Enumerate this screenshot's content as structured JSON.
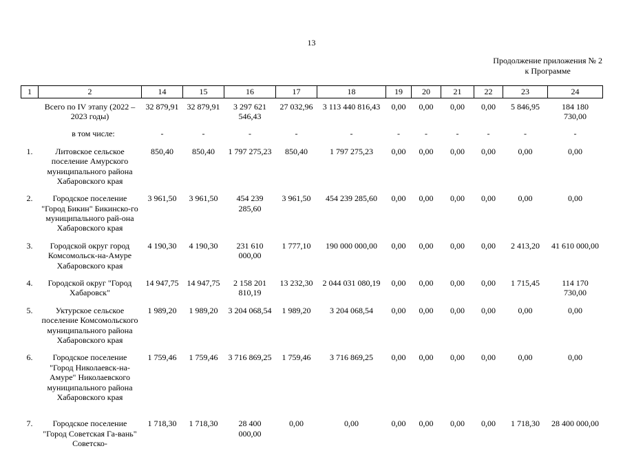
{
  "page": {
    "number": "13",
    "continuation_line1": "Продолжение приложения № 2",
    "continuation_line2": "к Программе"
  },
  "table": {
    "columns": [
      "1",
      "2",
      "14",
      "15",
      "16",
      "17",
      "18",
      "19",
      "20",
      "21",
      "22",
      "23",
      "24"
    ],
    "rows": [
      {
        "num": "",
        "name": "Всего по IV этапу (2022 – 2023 годы)",
        "indent": false,
        "values": [
          "32 879,91",
          "32 879,91",
          "3 297 621 546,43",
          "27 032,96",
          "3 113 440 816,43",
          "0,00",
          "0,00",
          "0,00",
          "0,00",
          "5 846,95",
          "184 180 730,00"
        ]
      },
      {
        "num": "",
        "name": "в том числе:",
        "indent": true,
        "values": [
          "-",
          "-",
          "-",
          "-",
          "-",
          "-",
          "-",
          "-",
          "-",
          "-",
          "-"
        ]
      },
      {
        "num": "1.",
        "name": "Литовское сельское поселение Амурского муниципального района Хабаровского края",
        "indent": false,
        "values": [
          "850,40",
          "850,40",
          "1 797 275,23",
          "850,40",
          "1 797 275,23",
          "0,00",
          "0,00",
          "0,00",
          "0,00",
          "0,00",
          "0,00"
        ]
      },
      {
        "num": "2.",
        "name": "Городское поселение \"Город Бикин\" Бикинско-го муниципального рай-она Хабаровского края",
        "indent": false,
        "values": [
          "3 961,50",
          "3 961,50",
          "454 239 285,60",
          "3 961,50",
          "454 239 285,60",
          "0,00",
          "0,00",
          "0,00",
          "0,00",
          "0,00",
          "0,00"
        ]
      },
      {
        "num": "3.",
        "name": "Городской округ город Комсомольск-на-Амуре Хабаровского края",
        "indent": false,
        "values": [
          "4 190,30",
          "4 190,30",
          "231 610 000,00",
          "1 777,10",
          "190 000 000,00",
          "0,00",
          "0,00",
          "0,00",
          "0,00",
          "2 413,20",
          "41 610 000,00"
        ]
      },
      {
        "num": "4.",
        "name": "Городской округ \"Город Хабаровск\"",
        "indent": false,
        "values": [
          "14 947,75",
          "14 947,75",
          "2 158 201 810,19",
          "13 232,30",
          "2 044 031 080,19",
          "0,00",
          "0,00",
          "0,00",
          "0,00",
          "1 715,45",
          "114 170 730,00"
        ]
      },
      {
        "num": "5.",
        "name": "Уктурское сельское поселение Комсомольского муниципального района Хабаровского края",
        "indent": false,
        "values": [
          "1 989,20",
          "1 989,20",
          "3 204 068,54",
          "1 989,20",
          "3 204 068,54",
          "0,00",
          "0,00",
          "0,00",
          "0,00",
          "0,00",
          "0,00"
        ]
      },
      {
        "num": "6.",
        "name": "Городское поселение \"Город Николаевск-на-Амуре\" Николаевского муниципального района Хабаровского края",
        "indent": false,
        "values": [
          "1 759,46",
          "1 759,46",
          "3 716 869,25",
          "1 759,46",
          "3 716 869,25",
          "0,00",
          "0,00",
          "0,00",
          "0,00",
          "0,00",
          "0,00"
        ]
      },
      {
        "num": "7.",
        "name": "Городское поселение \"Город Советская Га-вань\" Советско-",
        "indent": false,
        "values": [
          "1 718,30",
          "1 718,30",
          "28 400 000,00",
          "0,00",
          "0,00",
          "0,00",
          "0,00",
          "0,00",
          "0,00",
          "1 718,30",
          "28 400 000,00"
        ]
      }
    ]
  }
}
